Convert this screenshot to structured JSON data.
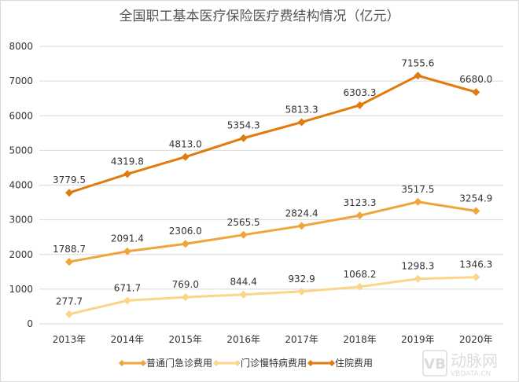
{
  "chart_data": {
    "type": "line",
    "title": "全国职工基本医疗保险医疗费结构情况（亿元）",
    "categories": [
      "2013年",
      "2014年",
      "2015年",
      "2016年",
      "2017年",
      "2018年",
      "2019年",
      "2020年"
    ],
    "ylim": [
      0,
      8000
    ],
    "yticks": [
      0,
      1000,
      2000,
      3000,
      4000,
      5000,
      6000,
      7000,
      8000
    ],
    "grid": true,
    "legend_position": "bottom",
    "series": [
      {
        "name": "普通门急诊费用",
        "color": "#F0A43C",
        "values": [
          1788.7,
          2091.4,
          2306.0,
          2565.5,
          2824.4,
          3123.3,
          3517.5,
          3254.9
        ]
      },
      {
        "name": "门诊慢特病费用",
        "color": "#FAD58A",
        "values": [
          277.7,
          671.7,
          769.0,
          844.4,
          932.9,
          1068.2,
          1298.3,
          1346.3
        ]
      },
      {
        "name": "住院费用",
        "color": "#E07B10",
        "values": [
          3779.5,
          4319.8,
          4813.0,
          5354.3,
          5813.3,
          6303.3,
          7155.6,
          6680.0
        ]
      }
    ]
  },
  "watermark": {
    "text": "动脉网",
    "sub": "VBDATA.CN"
  }
}
